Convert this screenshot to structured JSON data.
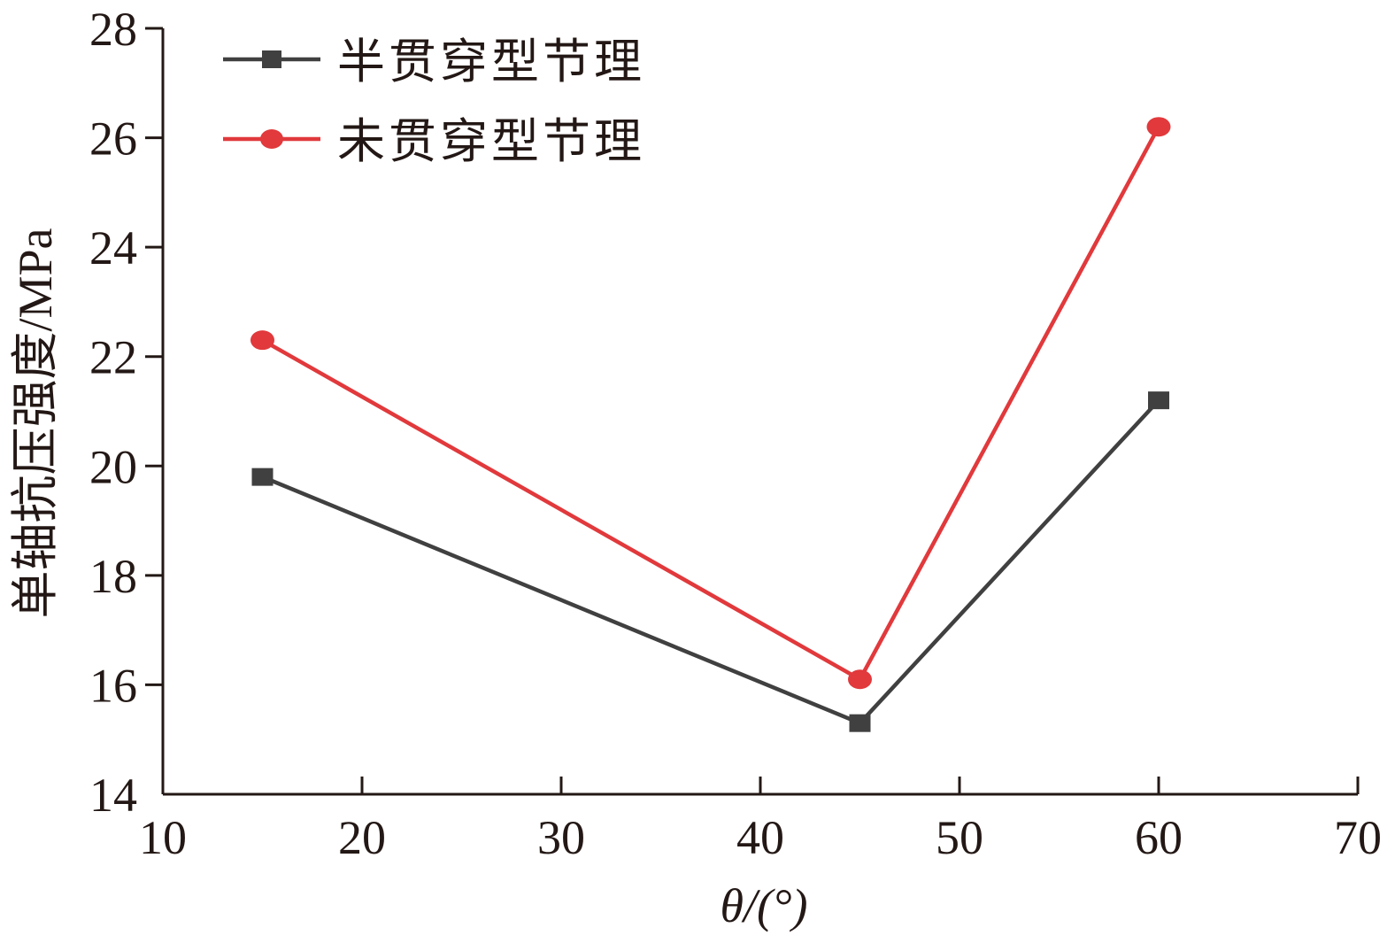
{
  "chart_data": {
    "type": "line",
    "xlabel": "θ/(°)",
    "ylabel": "单轴抗压强度/MPa",
    "xlim": [
      10,
      70
    ],
    "ylim": [
      14,
      28
    ],
    "xticks": [
      10,
      20,
      30,
      40,
      50,
      60,
      70
    ],
    "yticks": [
      14,
      16,
      18,
      20,
      22,
      24,
      26,
      28
    ],
    "x": [
      15,
      45,
      60
    ],
    "series": [
      {
        "name": "半贯穿型节理",
        "values": [
          19.8,
          15.3,
          21.2
        ],
        "color": "#404040",
        "marker": "square"
      },
      {
        "name": "未贯穿型节理",
        "values": [
          22.3,
          16.1,
          26.2
        ],
        "color": "#e1393c",
        "marker": "circle"
      }
    ],
    "grid": false,
    "legend_position": "top-left"
  }
}
